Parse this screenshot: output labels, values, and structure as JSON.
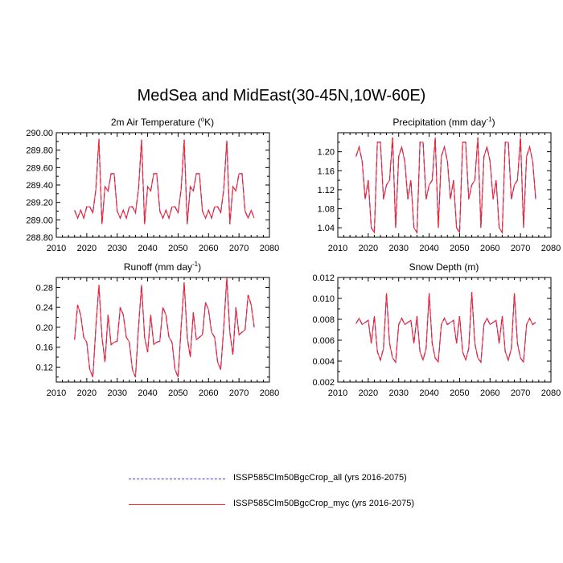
{
  "title": "MedSea and MidEast(30-45N,10W-60E)",
  "colors": {
    "series_all": "#3a3aff",
    "series_myc": "#ff2020",
    "axis": "#000000"
  },
  "legend": {
    "items": [
      {
        "label": "ISSP585Clm50BgcCrop_all (yrs 2016-2075)",
        "style": "dashed",
        "color": "#3a3aff"
      },
      {
        "label": "ISSP585Clm50BgcCrop_myc (yrs 2016-2075)",
        "style": "solid",
        "color": "#ff2020"
      }
    ]
  },
  "chart_data": [
    {
      "type": "line",
      "title": "2m Air Temperature (°K)",
      "title_parts": [
        "2m Air Temperature (",
        "o",
        "K)"
      ],
      "xlim": [
        2010,
        2080
      ],
      "ylim": [
        288.8,
        290.0
      ],
      "xticks": [
        2010,
        2020,
        2030,
        2040,
        2050,
        2060,
        2070,
        2080
      ],
      "yticks": [
        "288.80",
        "289.00",
        "289.20",
        "289.40",
        "289.60",
        "289.80",
        "290.00"
      ],
      "x_start": 2016,
      "series": [
        {
          "name": "ISSP585Clm50BgcCrop_all (yrs 2016-2075)",
          "values": [
            289.11,
            289.02,
            289.11,
            289.02,
            289.15,
            289.15,
            289.08,
            289.35,
            289.93,
            288.95,
            289.38,
            289.33,
            289.53,
            289.53,
            289.1,
            289.02,
            289.11,
            289.02,
            289.15,
            289.15,
            289.08,
            289.35,
            289.92,
            288.95,
            289.38,
            289.33,
            289.53,
            289.53,
            289.1,
            289.02,
            289.11,
            289.02,
            289.15,
            289.15,
            289.08,
            289.35,
            289.92,
            288.95,
            289.38,
            289.33,
            289.53,
            289.53,
            289.1,
            289.02,
            289.11,
            289.02,
            289.15,
            289.15,
            289.08,
            289.35,
            289.91,
            288.95,
            289.38,
            289.33,
            289.53,
            289.53,
            289.1,
            289.02,
            289.11,
            289.02
          ]
        },
        {
          "name": "ISSP585Clm50BgcCrop_myc (yrs 2016-2075)",
          "values": [
            289.11,
            289.02,
            289.11,
            289.02,
            289.15,
            289.15,
            289.08,
            289.35,
            289.93,
            288.95,
            289.38,
            289.33,
            289.53,
            289.53,
            289.1,
            289.02,
            289.11,
            289.02,
            289.15,
            289.15,
            289.08,
            289.35,
            289.92,
            288.95,
            289.38,
            289.33,
            289.53,
            289.53,
            289.1,
            289.02,
            289.11,
            289.02,
            289.15,
            289.15,
            289.08,
            289.35,
            289.92,
            288.95,
            289.38,
            289.33,
            289.53,
            289.53,
            289.1,
            289.02,
            289.11,
            289.02,
            289.15,
            289.15,
            289.08,
            289.35,
            289.91,
            288.95,
            289.38,
            289.33,
            289.53,
            289.53,
            289.1,
            289.02,
            289.11,
            289.02
          ]
        }
      ]
    },
    {
      "type": "line",
      "title": "Precipitation (mm day-1)",
      "title_parts": [
        "Precipitation (mm day",
        "-1",
        ")"
      ],
      "xlim": [
        2010,
        2080
      ],
      "ylim": [
        1.02,
        1.24
      ],
      "xticks": [
        2010,
        2020,
        2030,
        2040,
        2050,
        2060,
        2070,
        2080
      ],
      "yticks": [
        "1.04",
        "1.08",
        "1.12",
        "1.16",
        "1.20"
      ],
      "x_start": 2016,
      "series": [
        {
          "name": "ISSP585Clm50BgcCrop_all (yrs 2016-2075)",
          "values": [
            1.19,
            1.21,
            1.18,
            1.1,
            1.14,
            1.04,
            1.03,
            1.22,
            1.22,
            1.1,
            1.13,
            1.14,
            1.23,
            1.04,
            1.19,
            1.21,
            1.18,
            1.1,
            1.14,
            1.04,
            1.03,
            1.22,
            1.22,
            1.1,
            1.13,
            1.14,
            1.23,
            1.04,
            1.19,
            1.21,
            1.18,
            1.1,
            1.14,
            1.04,
            1.03,
            1.22,
            1.22,
            1.1,
            1.13,
            1.14,
            1.23,
            1.04,
            1.19,
            1.21,
            1.18,
            1.1,
            1.14,
            1.04,
            1.03,
            1.22,
            1.22,
            1.1,
            1.13,
            1.14,
            1.23,
            1.04,
            1.19,
            1.21,
            1.18,
            1.1
          ]
        },
        {
          "name": "ISSP585Clm50BgcCrop_myc (yrs 2016-2075)",
          "values": [
            1.19,
            1.21,
            1.18,
            1.1,
            1.14,
            1.04,
            1.03,
            1.22,
            1.22,
            1.1,
            1.13,
            1.14,
            1.23,
            1.04,
            1.19,
            1.21,
            1.18,
            1.1,
            1.14,
            1.04,
            1.03,
            1.22,
            1.22,
            1.1,
            1.13,
            1.14,
            1.23,
            1.04,
            1.19,
            1.21,
            1.18,
            1.1,
            1.14,
            1.04,
            1.03,
            1.22,
            1.22,
            1.1,
            1.13,
            1.14,
            1.23,
            1.04,
            1.19,
            1.21,
            1.18,
            1.1,
            1.14,
            1.04,
            1.03,
            1.22,
            1.22,
            1.1,
            1.13,
            1.14,
            1.23,
            1.04,
            1.19,
            1.21,
            1.18,
            1.1
          ]
        }
      ]
    },
    {
      "type": "line",
      "title": "Runoff (mm day-1)",
      "title_parts": [
        "Runoff (mm day",
        "-1",
        ")"
      ],
      "xlim": [
        2010,
        2080
      ],
      "ylim": [
        0.09,
        0.3
      ],
      "xticks": [
        2010,
        2020,
        2030,
        2040,
        2050,
        2060,
        2070,
        2080
      ],
      "yticks": [
        "0.12",
        "0.16",
        "0.20",
        "0.24",
        "0.28"
      ],
      "x_start": 2016,
      "series": [
        {
          "name": "ISSP585Clm50BgcCrop_all (yrs 2016-2075)",
          "values": [
            0.175,
            0.245,
            0.225,
            0.18,
            0.17,
            0.115,
            0.1,
            0.2,
            0.285,
            0.18,
            0.13,
            0.225,
            0.165,
            0.17,
            0.172,
            0.24,
            0.225,
            0.18,
            0.17,
            0.115,
            0.1,
            0.2,
            0.285,
            0.18,
            0.15,
            0.225,
            0.165,
            0.17,
            0.172,
            0.24,
            0.225,
            0.18,
            0.17,
            0.115,
            0.1,
            0.2,
            0.29,
            0.18,
            0.14,
            0.23,
            0.175,
            0.18,
            0.185,
            0.25,
            0.235,
            0.19,
            0.18,
            0.13,
            0.115,
            0.2,
            0.3,
            0.19,
            0.145,
            0.24,
            0.185,
            0.19,
            0.195,
            0.265,
            0.245,
            0.2
          ]
        },
        {
          "name": "ISSP585Clm50BgcCrop_myc (yrs 2016-2075)",
          "values": [
            0.175,
            0.245,
            0.225,
            0.18,
            0.17,
            0.115,
            0.1,
            0.2,
            0.285,
            0.18,
            0.13,
            0.225,
            0.165,
            0.17,
            0.172,
            0.24,
            0.225,
            0.18,
            0.17,
            0.115,
            0.1,
            0.2,
            0.285,
            0.18,
            0.15,
            0.225,
            0.165,
            0.17,
            0.172,
            0.24,
            0.225,
            0.18,
            0.17,
            0.115,
            0.1,
            0.2,
            0.29,
            0.18,
            0.14,
            0.23,
            0.175,
            0.18,
            0.185,
            0.25,
            0.235,
            0.19,
            0.18,
            0.13,
            0.115,
            0.2,
            0.3,
            0.19,
            0.145,
            0.24,
            0.185,
            0.19,
            0.195,
            0.265,
            0.245,
            0.2
          ]
        }
      ]
    },
    {
      "type": "line",
      "title": "Snow Depth (m)",
      "title_parts": [
        "Snow Depth (m)",
        "",
        ""
      ],
      "xlim": [
        2010,
        2080
      ],
      "ylim": [
        0.002,
        0.012
      ],
      "xticks": [
        2010,
        2020,
        2030,
        2040,
        2050,
        2060,
        2070,
        2080
      ],
      "yticks": [
        "0.002",
        "0.004",
        "0.006",
        "0.008",
        "0.010",
        "0.012"
      ],
      "x_start": 2016,
      "series": [
        {
          "name": "ISSP585Clm50BgcCrop_all (yrs 2016-2075)",
          "values": [
            0.0076,
            0.0081,
            0.0075,
            0.0077,
            0.0079,
            0.0057,
            0.0083,
            0.0049,
            0.0041,
            0.0052,
            0.0105,
            0.0057,
            0.0043,
            0.0039,
            0.0075,
            0.0081,
            0.0075,
            0.0077,
            0.0079,
            0.0057,
            0.0083,
            0.0049,
            0.0041,
            0.0052,
            0.0105,
            0.0057,
            0.0043,
            0.0039,
            0.0075,
            0.0081,
            0.0075,
            0.0077,
            0.0079,
            0.0057,
            0.0083,
            0.0049,
            0.0041,
            0.0052,
            0.0106,
            0.0057,
            0.0043,
            0.0039,
            0.0075,
            0.0081,
            0.0075,
            0.0077,
            0.0079,
            0.0057,
            0.0083,
            0.0049,
            0.0041,
            0.0052,
            0.0105,
            0.0057,
            0.0043,
            0.0039,
            0.0075,
            0.0081,
            0.0075,
            0.0077
          ]
        },
        {
          "name": "ISSP585Clm50BgcCrop_myc (yrs 2016-2075)",
          "values": [
            0.0076,
            0.0081,
            0.0075,
            0.0077,
            0.0079,
            0.0057,
            0.0083,
            0.0049,
            0.0041,
            0.0052,
            0.0105,
            0.0057,
            0.0043,
            0.0039,
            0.0075,
            0.0081,
            0.0075,
            0.0077,
            0.0079,
            0.0057,
            0.0083,
            0.0049,
            0.0041,
            0.0052,
            0.0105,
            0.0057,
            0.0043,
            0.0039,
            0.0075,
            0.0081,
            0.0075,
            0.0077,
            0.0079,
            0.0057,
            0.0083,
            0.0049,
            0.0041,
            0.0052,
            0.0106,
            0.0057,
            0.0043,
            0.0039,
            0.0075,
            0.0081,
            0.0075,
            0.0077,
            0.0079,
            0.0057,
            0.0083,
            0.0049,
            0.0041,
            0.0052,
            0.0105,
            0.0057,
            0.0043,
            0.0039,
            0.0075,
            0.0081,
            0.0075,
            0.0077
          ]
        }
      ]
    }
  ]
}
